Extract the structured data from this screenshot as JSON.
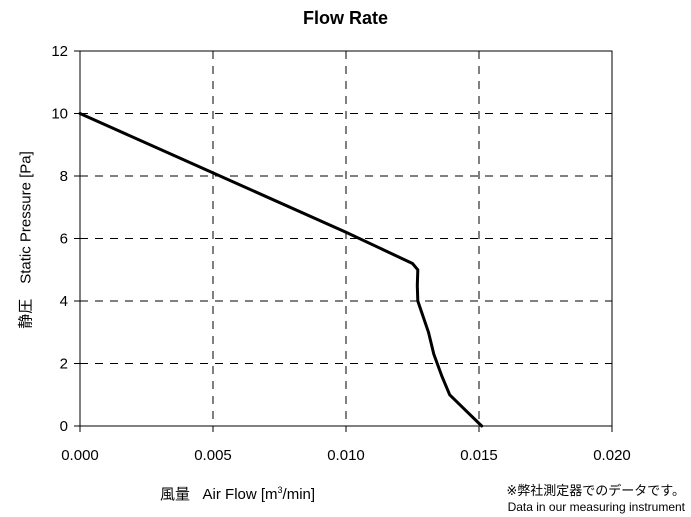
{
  "chart_data": {
    "type": "line",
    "title": "Flow Rate",
    "xlabel_jp": "風量",
    "xlabel_en": "Air Flow [m",
    "xlabel_sup": "3",
    "xlabel_end": "/min]",
    "ylabel": "静圧　Static Pressure [Pa]",
    "xlim": [
      0,
      0.02
    ],
    "ylim": [
      0,
      12
    ],
    "x_ticks": [
      "0.000",
      "0.005",
      "0.010",
      "0.015",
      "0.020"
    ],
    "y_ticks": [
      "0",
      "2",
      "4",
      "6",
      "8",
      "10",
      "12"
    ],
    "grid": "dashed",
    "series": [
      {
        "x": [
          0.0,
          0.005,
          0.01,
          0.0125,
          0.0127,
          0.01268,
          0.0127,
          0.0131,
          0.0133,
          0.0136,
          0.0139,
          0.0145,
          0.0151
        ],
        "y": [
          10.0,
          8.1,
          6.2,
          5.2,
          5.0,
          4.5,
          4.0,
          3.0,
          2.3,
          1.6,
          1.0,
          0.5,
          0.0
        ]
      }
    ]
  },
  "note": {
    "jp": "※弊社測定器でのデータです。",
    "en": "Data in our measuring instrument"
  }
}
